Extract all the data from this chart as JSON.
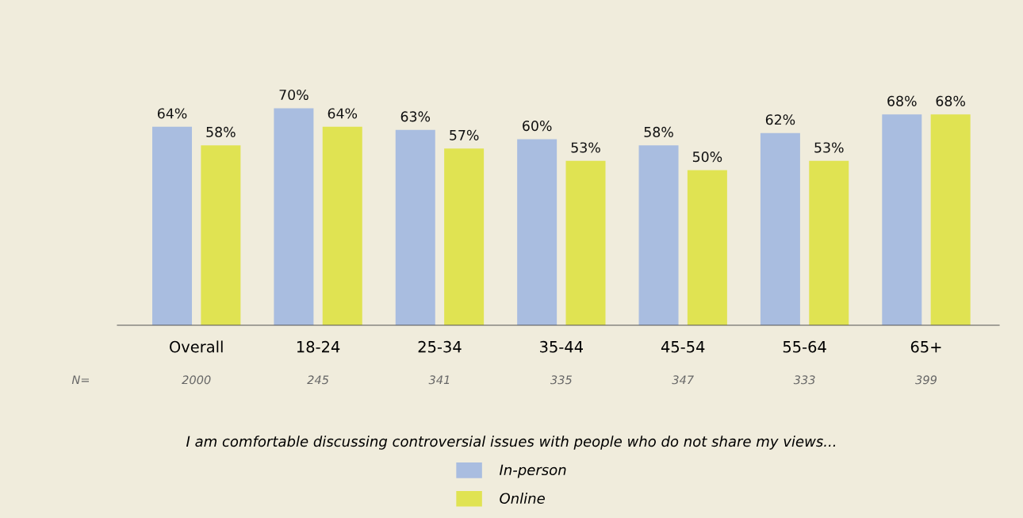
{
  "chart_data": {
    "type": "bar",
    "categories": [
      "Overall",
      "18-24",
      "25-34",
      "35-44",
      "45-54",
      "55-64",
      "65+"
    ],
    "series": [
      {
        "name": "In-person",
        "color": "#a9bde0",
        "values": [
          64,
          70,
          63,
          60,
          58,
          62,
          68
        ],
        "value_labels": [
          "64%",
          "70%",
          "63%",
          "60%",
          "58%",
          "62%",
          "68%"
        ]
      },
      {
        "name": "Online",
        "color": "#e0e352",
        "values": [
          58,
          64,
          57,
          53,
          50,
          53,
          68
        ],
        "value_labels": [
          "58%",
          "64%",
          "57%",
          "53%",
          "50%",
          "53%",
          "68%"
        ]
      }
    ],
    "legend": "bottom",
    "grid": false,
    "legend_title": "I am comfortable discussing controversial issues with people who do not share my views...",
    "annotations": [
      "N=",
      "2000",
      "245",
      "341",
      "335",
      "347",
      "333",
      "399"
    ]
  }
}
